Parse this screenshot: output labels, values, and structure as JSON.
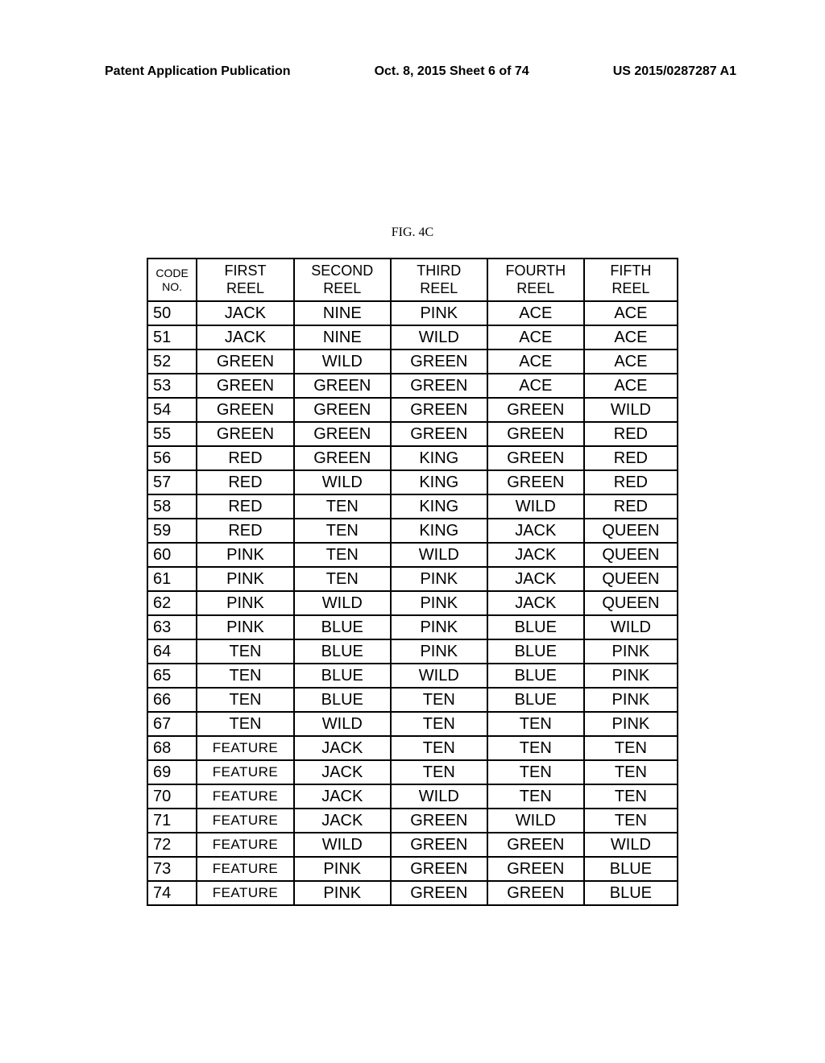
{
  "header": {
    "left": "Patent Application Publication",
    "center": "Oct. 8, 2015  Sheet 6 of 74",
    "right": "US 2015/0287287 A1"
  },
  "figure_label": "FIG. 4C",
  "table": {
    "columns": [
      "CODE NO.",
      "FIRST REEL",
      "SECOND REEL",
      "THIRD REEL",
      "FOURTH REEL",
      "FIFTH REEL"
    ],
    "rows": [
      [
        "50",
        "JACK",
        "NINE",
        "PINK",
        "ACE",
        "ACE"
      ],
      [
        "51",
        "JACK",
        "NINE",
        "WILD",
        "ACE",
        "ACE"
      ],
      [
        "52",
        "GREEN",
        "WILD",
        "GREEN",
        "ACE",
        "ACE"
      ],
      [
        "53",
        "GREEN",
        "GREEN",
        "GREEN",
        "ACE",
        "ACE"
      ],
      [
        "54",
        "GREEN",
        "GREEN",
        "GREEN",
        "GREEN",
        "WILD"
      ],
      [
        "55",
        "GREEN",
        "GREEN",
        "GREEN",
        "GREEN",
        "RED"
      ],
      [
        "56",
        "RED",
        "GREEN",
        "KING",
        "GREEN",
        "RED"
      ],
      [
        "57",
        "RED",
        "WILD",
        "KING",
        "GREEN",
        "RED"
      ],
      [
        "58",
        "RED",
        "TEN",
        "KING",
        "WILD",
        "RED"
      ],
      [
        "59",
        "RED",
        "TEN",
        "KING",
        "JACK",
        "QUEEN"
      ],
      [
        "60",
        "PINK",
        "TEN",
        "WILD",
        "JACK",
        "QUEEN"
      ],
      [
        "61",
        "PINK",
        "TEN",
        "PINK",
        "JACK",
        "QUEEN"
      ],
      [
        "62",
        "PINK",
        "WILD",
        "PINK",
        "JACK",
        "QUEEN"
      ],
      [
        "63",
        "PINK",
        "BLUE",
        "PINK",
        "BLUE",
        "WILD"
      ],
      [
        "64",
        "TEN",
        "BLUE",
        "PINK",
        "BLUE",
        "PINK"
      ],
      [
        "65",
        "TEN",
        "BLUE",
        "WILD",
        "BLUE",
        "PINK"
      ],
      [
        "66",
        "TEN",
        "BLUE",
        "TEN",
        "BLUE",
        "PINK"
      ],
      [
        "67",
        "TEN",
        "WILD",
        "TEN",
        "TEN",
        "PINK"
      ],
      [
        "68",
        "FEATURE",
        "JACK",
        "TEN",
        "TEN",
        "TEN"
      ],
      [
        "69",
        "FEATURE",
        "JACK",
        "TEN",
        "TEN",
        "TEN"
      ],
      [
        "70",
        "FEATURE",
        "JACK",
        "WILD",
        "TEN",
        "TEN"
      ],
      [
        "71",
        "FEATURE",
        "JACK",
        "GREEN",
        "WILD",
        "TEN"
      ],
      [
        "72",
        "FEATURE",
        "WILD",
        "GREEN",
        "GREEN",
        "WILD"
      ],
      [
        "73",
        "FEATURE",
        "PINK",
        "GREEN",
        "GREEN",
        "BLUE"
      ],
      [
        "74",
        "FEATURE",
        "PINK",
        "GREEN",
        "GREEN",
        "BLUE"
      ]
    ]
  }
}
